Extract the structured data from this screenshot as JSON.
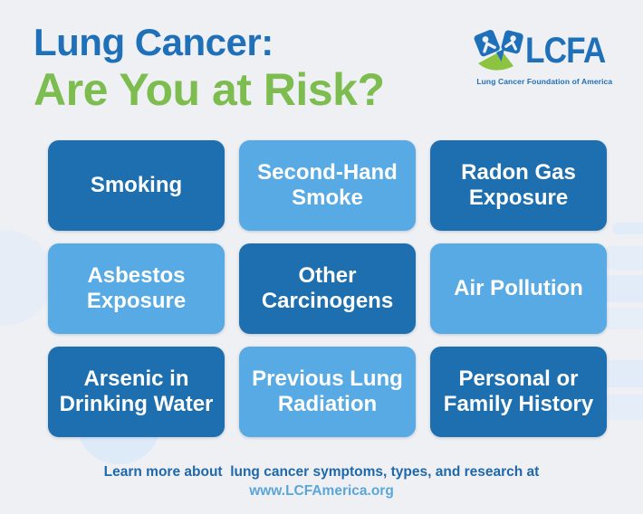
{
  "page": {
    "background": "#eff0f3"
  },
  "title": {
    "line1": "Lung Cancer:",
    "line2": "Are You at Risk?"
  },
  "logo": {
    "acronym": "LCFA",
    "tagline": "Lung Cancer Foundation of America"
  },
  "colors": {
    "background": "#eff0f3",
    "title_blue": "#1e70b8",
    "title_green": "#7dbd4f",
    "logo_green": "#8cc341",
    "tile_dark": "#1d6fb0",
    "tile_light": "#57aae4",
    "tile_text": "#ffffff",
    "footer_blue": "#1f68aa",
    "footer_link": "#5aa6da"
  },
  "tiles": [
    {
      "label": "Smoking",
      "tone": "dark"
    },
    {
      "label": "Second-Hand Smoke",
      "tone": "light"
    },
    {
      "label": "Radon Gas Exposure",
      "tone": "dark"
    },
    {
      "label": "Asbestos Exposure",
      "tone": "light"
    },
    {
      "label": "Other Carcinogens",
      "tone": "dark"
    },
    {
      "label": "Air Pollution",
      "tone": "light"
    },
    {
      "label": "Arsenic in Drinking Water",
      "tone": "dark"
    },
    {
      "label": "Previous Lung Radiation",
      "tone": "light"
    },
    {
      "label": "Personal or Family History",
      "tone": "dark"
    }
  ],
  "footer": {
    "line1": "Learn more about  lung cancer symptoms, types, and research at",
    "link": "www.LCFAmerica.org"
  }
}
